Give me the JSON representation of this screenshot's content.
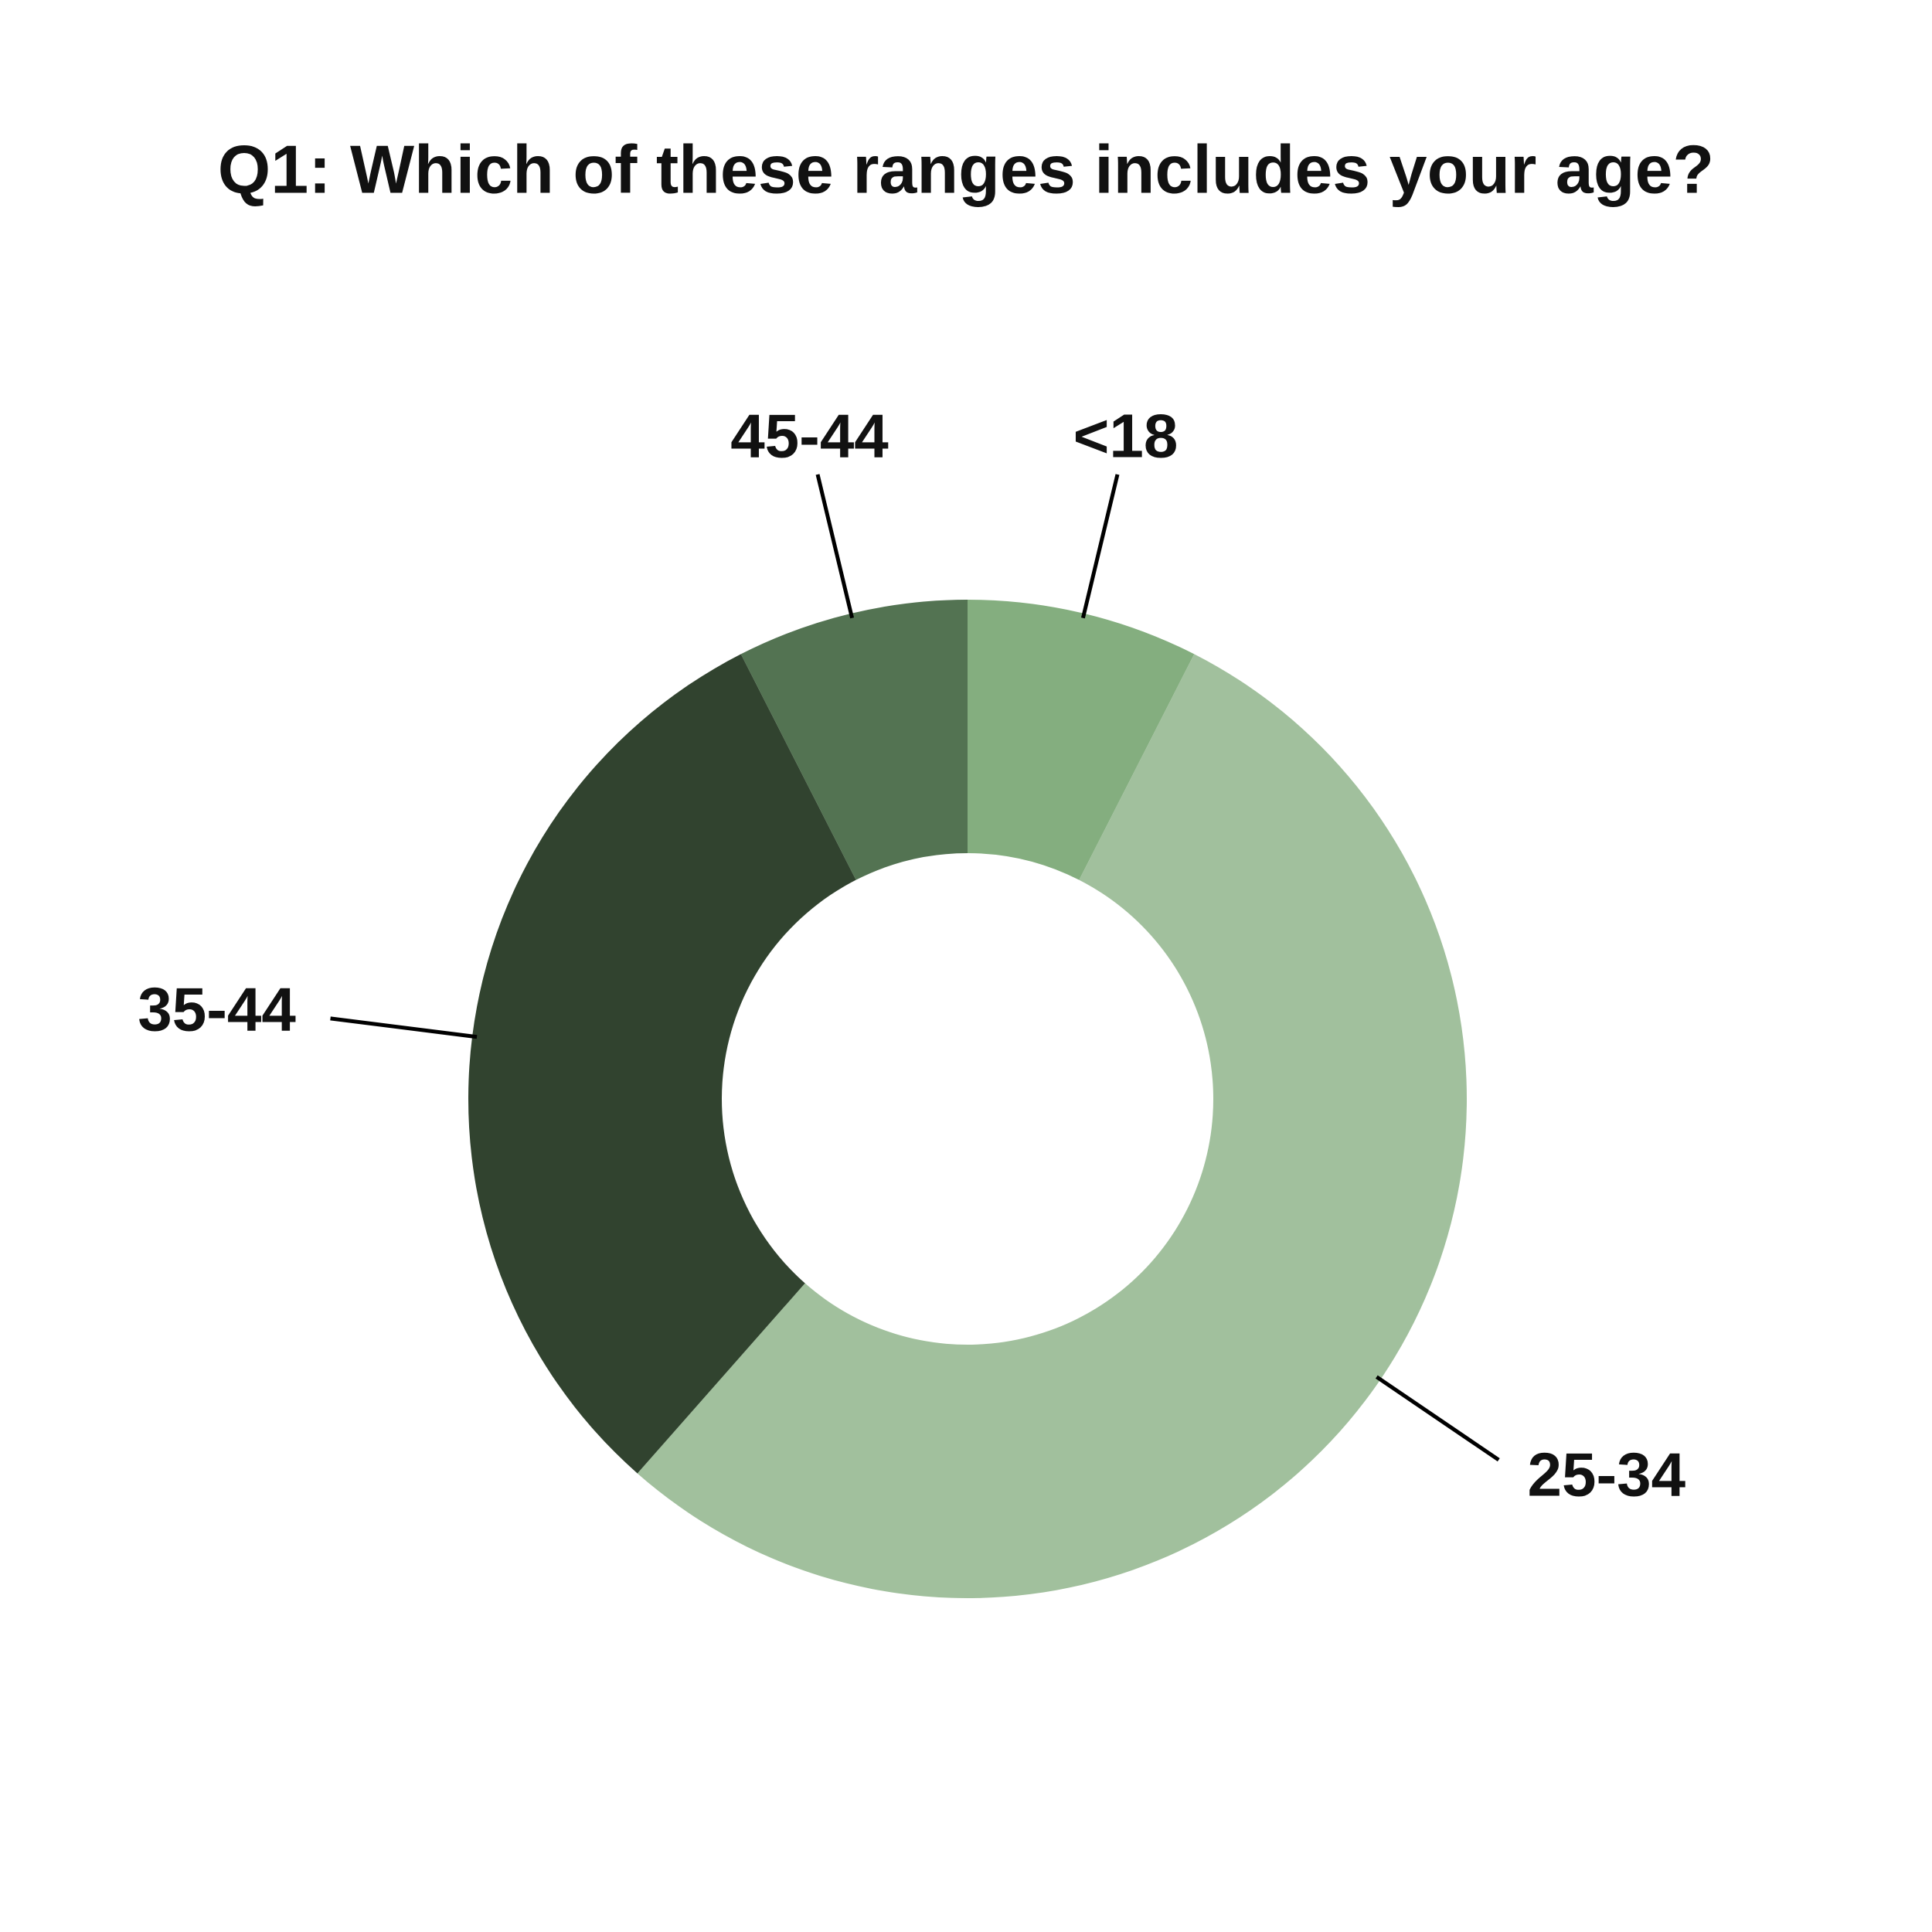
{
  "chart_data": {
    "type": "donut",
    "title": "Q1: Which of these ranges includes your age?",
    "categories": [
      "<18",
      "25-34",
      "35-44",
      "45-44"
    ],
    "values": [
      7.5,
      54,
      31,
      7.5
    ],
    "colors": [
      "#84ae7f",
      "#a1c09d",
      "#31432f",
      "#537352"
    ]
  }
}
